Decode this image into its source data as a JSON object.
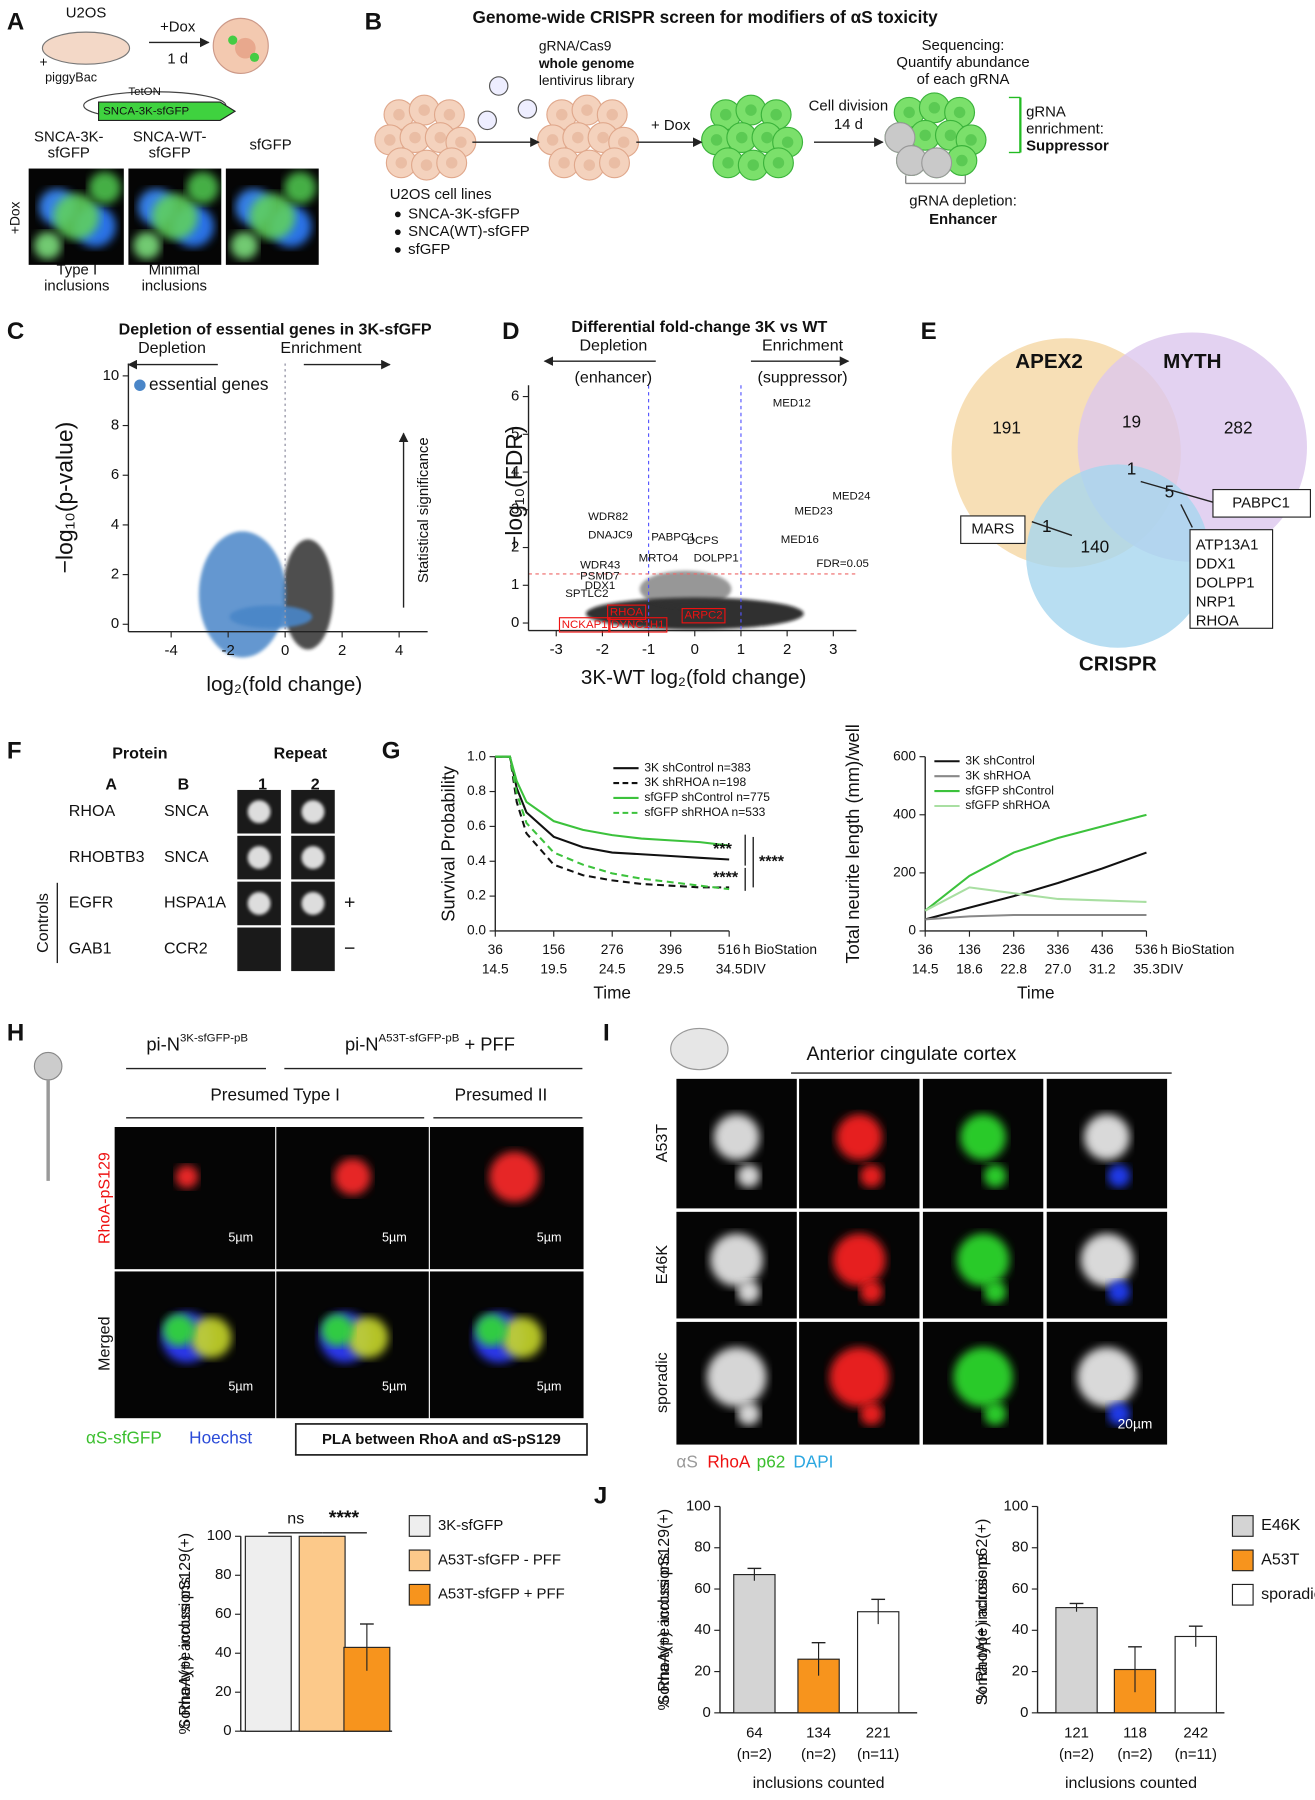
{
  "panels": {
    "A": {
      "label": "A",
      "cell_line": "U2OS",
      "treatment": "+Dox",
      "duration": "1 d",
      "plus": "+",
      "vector": "piggyBac",
      "promoter": "TetON",
      "construct": "SNCA-3K-sfGFP",
      "row_label": "+Dox",
      "columns": [
        [
          "SNCA-3K-",
          "sfGFP"
        ],
        [
          "SNCA-WT-",
          "sfGFP"
        ],
        [
          "sfGFP"
        ]
      ],
      "captions": [
        [
          "Type I",
          "inclusions"
        ],
        [
          "Minimal",
          "inclusions"
        ]
      ]
    },
    "B": {
      "label": "B",
      "title": "Genome-wide CRISPR screen for modifiers of αS toxicity",
      "library": [
        "gRNA/Cas9",
        "whole genome",
        "lentivirus library"
      ],
      "dox": "+ Dox",
      "division": [
        "Cell division",
        "14 d"
      ],
      "sequencing": [
        "Sequencing:",
        "Quantify abundance",
        "of each gRNA"
      ],
      "enrichment": [
        "gRNA",
        "enrichment:",
        "Suppressor"
      ],
      "depletion": [
        "gRNA depletion:",
        "Enhancer"
      ],
      "cell_lines_title": "U2OS cell lines",
      "cell_lines": [
        "SNCA-3K-sfGFP",
        "SNCA(WT)-sfGFP",
        "sfGFP"
      ]
    },
    "C": {
      "label": "C"
    },
    "D": {
      "label": "D"
    },
    "E": {
      "label": "E",
      "sets": [
        "APEX2",
        "MYTH",
        "CRISPR"
      ],
      "counts": {
        "apex2_only": 191,
        "apex2_myth": 19,
        "myth_only": 282,
        "all": 1,
        "apex2_crispr": 1,
        "myth_crispr": 5,
        "crispr_only": 140
      },
      "callouts": {
        "apex2_crispr": "MARS",
        "all": "PABPC1",
        "myth_crispr": [
          "ATP13A1",
          "DDX1",
          "DOLPP1",
          "NRP1",
          "RHOA"
        ]
      }
    },
    "F": {
      "label": "F",
      "headers": {
        "protein": "Protein",
        "repeat": "Repeat",
        "a": "A",
        "b": "B",
        "repeats": [
          "1",
          "2"
        ]
      },
      "rows": [
        [
          "RHOA",
          "SNCA"
        ],
        [
          "RHOBTB3",
          "SNCA"
        ],
        [
          "EGFR",
          "HSPA1A"
        ],
        [
          "GAB1",
          "CCR2"
        ]
      ],
      "control_signs": [
        "+",
        "−"
      ],
      "controls": "Controls"
    },
    "G": {
      "label": "G"
    },
    "H": {
      "label": "H",
      "group1": [
        "pi-N",
        "3K-sfGFP-pB"
      ],
      "group2": [
        "pi-N",
        "A53T-sfGFP-pB",
        " + PFF"
      ],
      "subgroups": [
        "Presumed Type I",
        "Presumed II"
      ],
      "rows": [
        "RhoA-pS129",
        "Merged"
      ],
      "scale": "5µm",
      "legend": [
        "αS-sfGFP",
        "Hoechst"
      ],
      "pla": "PLA between RhoA and αS-pS129"
    },
    "I": {
      "label": "I",
      "title": "Anterior cingulate cortex",
      "rows": [
        "A53T",
        "E46K",
        "sporadic"
      ],
      "legend": [
        "αS",
        "RhoA",
        "p62",
        "DAPI"
      ],
      "scale": "20µm"
    },
    "J": {
      "label": "J"
    }
  },
  "chart_data": [
    {
      "type": "scatter",
      "title": "Depletion of essential genes in 3K-sfGFP",
      "x_label": "log₂(fold change)",
      "y_label": "−log₁₀(p-value)",
      "xlim": [
        -5.5,
        5
      ],
      "ylim": [
        -0.3,
        10.5
      ],
      "xticks": [
        -4,
        -2,
        0,
        2,
        4
      ],
      "yticks": [
        0,
        2,
        4,
        6,
        8,
        10
      ],
      "annotations": [
        "Depletion",
        "Enrichment",
        "essential genes",
        "Statistical significance"
      ],
      "colors": [
        "#222222",
        "#4a86c8"
      ]
    },
    {
      "type": "scatter",
      "title": "Differential fold-change 3K vs WT",
      "x_label": "3K-WT log₂(fold change)",
      "y_label": "−log₁₀(FDR)",
      "xlim": [
        -3.6,
        3.5
      ],
      "ylim": [
        -0.2,
        6.3
      ],
      "xticks": [
        -3,
        -2,
        -1,
        0,
        1,
        2,
        3
      ],
      "yticks": [
        0,
        1,
        2,
        3,
        4,
        5,
        6
      ],
      "annotations": [
        "Depletion",
        "(enhancer)",
        "Enrichment",
        "(suppressor)",
        "FDR=0.05"
      ],
      "genes": [
        "MED12",
        "MED24",
        "MED23",
        "MED16",
        "WDR82",
        "DNAJC9",
        "PABPC1",
        "DCPS",
        "MRTO4",
        "DOLPP1",
        "WDR43",
        "PSMD7",
        "DDX1",
        "SPTLC2"
      ],
      "highlighted_genes": [
        "NCKAP1",
        "RHOA",
        "DYNC1H1",
        "ARPC2"
      ],
      "reference_lines": {
        "y": 1.3,
        "x": [
          -1,
          1
        ]
      }
    },
    {
      "type": "line",
      "y_label": "Survival Probability",
      "x_label": "Time",
      "x_unit": "h BioStation",
      "x2_unit": "DIV",
      "xlim": [
        36,
        516
      ],
      "ylim": [
        0,
        1
      ],
      "xticks": [
        36,
        156,
        276,
        396,
        516
      ],
      "x2ticks": [
        14.5,
        19.5,
        24.5,
        29.5,
        34.5
      ],
      "yticks": [
        {
          "value": 0,
          "label": "0.0"
        },
        {
          "value": 0.2,
          "label": "0.2"
        },
        {
          "value": 0.4,
          "label": "0.4"
        },
        {
          "value": 0.6,
          "label": "0.6"
        },
        {
          "value": 0.8,
          "label": "0.8"
        },
        {
          "value": 1,
          "label": "1.0"
        }
      ],
      "x": [
        36,
        66,
        80,
        100,
        156,
        216,
        276,
        336,
        396,
        456,
        516
      ],
      "series": [
        {
          "name": "3K shControl n=383",
          "color": "#111111",
          "style": "solid",
          "values": [
            1,
            1,
            0.82,
            0.68,
            0.54,
            0.48,
            0.45,
            0.44,
            0.43,
            0.42,
            0.41
          ]
        },
        {
          "name": "3K shRHOA n=198",
          "color": "#111111",
          "style": "dashed",
          "values": [
            1,
            1,
            0.74,
            0.56,
            0.38,
            0.32,
            0.29,
            0.27,
            0.26,
            0.25,
            0.25
          ]
        },
        {
          "name": "sfGFP shControl n=775",
          "color": "#3cc23c",
          "style": "solid",
          "values": [
            1,
            1,
            0.86,
            0.74,
            0.63,
            0.58,
            0.55,
            0.53,
            0.52,
            0.51,
            0.49
          ]
        },
        {
          "name": "sfGFP shRHOA n=533",
          "color": "#3cc23c",
          "style": "dashed",
          "values": [
            1,
            1,
            0.79,
            0.62,
            0.45,
            0.38,
            0.33,
            0.3,
            0.28,
            0.26,
            0.24
          ]
        }
      ],
      "significance": [
        "***",
        "****",
        "****"
      ]
    },
    {
      "type": "line",
      "y_label": "Total neurite length (mm)/well",
      "x_label": "Time",
      "x_unit": "h BioStation",
      "x2_unit": "DIV",
      "xlim": [
        36,
        536
      ],
      "ylim": [
        0,
        600
      ],
      "xticks": [
        36,
        136,
        236,
        336,
        436,
        536
      ],
      "x2ticks": [
        14.5,
        18.6,
        22.8,
        {
          "value": 27,
          "label": "27.0"
        },
        31.2,
        35.3
      ],
      "yticks": [
        0,
        200,
        400,
        600
      ],
      "x": [
        36,
        136,
        236,
        336,
        436,
        536
      ],
      "series": [
        {
          "name": "3K shControl",
          "color": "#111111",
          "style": "solid",
          "values": [
            40,
            80,
            120,
            165,
            215,
            270
          ]
        },
        {
          "name": "3K shRHOA",
          "color": "#888888",
          "style": "solid",
          "values": [
            40,
            50,
            55,
            55,
            55,
            55
          ]
        },
        {
          "name": "sfGFP shControl",
          "color": "#3cc23c",
          "style": "solid",
          "values": [
            70,
            190,
            270,
            320,
            360,
            400
          ]
        },
        {
          "name": "sfGFP shRHOA",
          "color": "#a9dfa2",
          "style": "solid",
          "values": [
            70,
            150,
            130,
            110,
            105,
            100
          ]
        }
      ]
    },
    {
      "type": "bar",
      "y_label": [
        "% RhoA(+) across pS129(+)",
        "Soma-type inclusions"
      ],
      "ylim": [
        0,
        100
      ],
      "yticks": [
        0,
        20,
        40,
        60,
        80,
        100
      ],
      "categories": [
        "3K-sfGFP",
        "A53T-sfGFP - PFF",
        "A53T-sfGFP + PFF"
      ],
      "values": [
        100,
        100,
        43
      ],
      "errors": [
        null,
        null,
        12
      ],
      "colors": [
        "#eeeeee",
        "#fcc98a",
        "#f7941d"
      ],
      "significance": [
        "ns",
        "****"
      ]
    },
    {
      "type": "bar",
      "y_label": [
        "% RhoA(+) across pS129(+)",
        "Soma-type inclusions"
      ],
      "ylim": [
        0,
        100
      ],
      "yticks": [
        0,
        20,
        40,
        60,
        80,
        100
      ],
      "categories": [
        "64",
        "134",
        "221"
      ],
      "category_notes": [
        "(n=2)",
        "(n=2)",
        "(n=11)"
      ],
      "x_label": "inclusions counted",
      "values": [
        67,
        26,
        49
      ],
      "errors": [
        3,
        8,
        6
      ],
      "colors": [
        "#d4d4d4",
        "#f7941d",
        "#ffffff"
      ]
    },
    {
      "type": "bar",
      "y_label": [
        "% RhoA(+) across p62(+)",
        "Soma-type inclusions"
      ],
      "ylim": [
        0,
        100
      ],
      "yticks": [
        0,
        20,
        40,
        60,
        80,
        100
      ],
      "categories": [
        "121",
        "118",
        "242"
      ],
      "category_notes": [
        "(n=2)",
        "(n=2)",
        "(n=11)"
      ],
      "x_label": "inclusions counted",
      "values": [
        51,
        21,
        37
      ],
      "errors": [
        2,
        11,
        5
      ],
      "colors": [
        "#d4d4d4",
        "#f7941d",
        "#ffffff"
      ],
      "legend": [
        "E46K",
        "A53T",
        "sporadic"
      ]
    }
  ]
}
